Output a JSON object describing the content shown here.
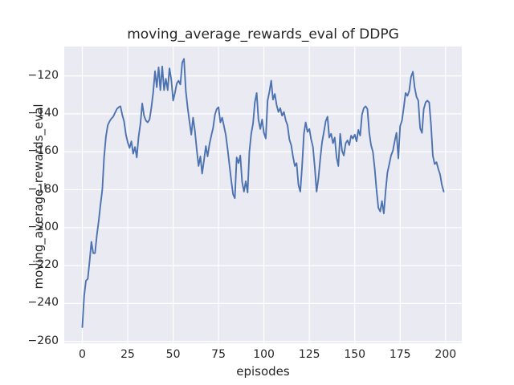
{
  "figure": {
    "background": "#FFFFFF"
  },
  "chart_data": {
    "type": "line",
    "title": "moving_average_rewards_eval of DDPG",
    "xlabel": "episodes",
    "ylabel": "moving_average_rewards_eval",
    "legend": null,
    "grid": true,
    "x_start": 0,
    "x_step": 1,
    "xlim": [
      -9.95,
      208.95
    ],
    "ylim": [
      -261,
      -104.5
    ],
    "xticks": [
      0,
      25,
      50,
      75,
      100,
      125,
      150,
      175,
      200
    ],
    "xtick_labels": [
      "0",
      "25",
      "50",
      "75",
      "100",
      "125",
      "150",
      "175",
      "200"
    ],
    "yticks": [
      -120,
      -140,
      -160,
      -180,
      -200,
      -220,
      -240,
      -260
    ],
    "ytick_labels": [
      "−120",
      "−140",
      "−160",
      "−180",
      "−200",
      "−220",
      "−240",
      "−260"
    ],
    "line_color": "#4C72B0",
    "axes_background": "#EAEAF2",
    "grid_color": "#FFFFFF",
    "text_color": "#262626",
    "values": [
      -252.5,
      -236,
      -228,
      -227,
      -218,
      -207.5,
      -213.5,
      -213.5,
      -204,
      -196.5,
      -188,
      -180,
      -163,
      -152,
      -146,
      -144,
      -142.5,
      -141.5,
      -139.5,
      -137.5,
      -136.5,
      -136,
      -140.5,
      -144,
      -151,
      -155,
      -158,
      -154.5,
      -161,
      -157.5,
      -163,
      -152,
      -145,
      -134.5,
      -141,
      -143.5,
      -144.5,
      -143,
      -137,
      -129,
      -117.5,
      -126,
      -115.5,
      -127.5,
      -115,
      -127.5,
      -121.5,
      -127.5,
      -116,
      -122,
      -133,
      -129,
      -124,
      -122.5,
      -124.5,
      -113,
      -111,
      -128,
      -137,
      -144,
      -151,
      -142,
      -149,
      -159,
      -167.5,
      -162.5,
      -171.5,
      -164.5,
      -157,
      -162.5,
      -156,
      -151.5,
      -147.5,
      -140.5,
      -137.5,
      -136.5,
      -144.5,
      -142,
      -146.5,
      -151,
      -158.5,
      -167,
      -175,
      -182.5,
      -184.5,
      -163,
      -166,
      -162,
      -176,
      -181,
      -175.5,
      -181.5,
      -160,
      -150.5,
      -145,
      -134,
      -129,
      -143,
      -148,
      -143,
      -150,
      -153,
      -133,
      -128.5,
      -122.5,
      -132.5,
      -129.5,
      -135.5,
      -139,
      -137,
      -141,
      -139,
      -143.5,
      -146,
      -153.5,
      -156.5,
      -162.5,
      -167.5,
      -166,
      -177.5,
      -181,
      -168,
      -150.5,
      -144.5,
      -149.5,
      -148,
      -153.5,
      -157.5,
      -168,
      -181,
      -174,
      -164,
      -155,
      -149.5,
      -144,
      -141.5,
      -152.5,
      -150.5,
      -155.5,
      -152.5,
      -163,
      -167.5,
      -150.5,
      -159.5,
      -162,
      -155.5,
      -154,
      -156.5,
      -151.5,
      -153,
      -151,
      -154.5,
      -148.5,
      -151.5,
      -140.5,
      -137,
      -136,
      -137.5,
      -150,
      -156.5,
      -160,
      -169,
      -180,
      -189.5,
      -191.5,
      -186,
      -192.5,
      -181,
      -171,
      -166.5,
      -162,
      -159.5,
      -154.5,
      -150,
      -163.5,
      -146.5,
      -143.5,
      -136.5,
      -129,
      -130.5,
      -128,
      -120.5,
      -117.8,
      -126,
      -131,
      -133,
      -147.5,
      -150,
      -137.5,
      -134,
      -133,
      -134,
      -146,
      -162,
      -166.5,
      -165.5,
      -169,
      -172,
      -177.5,
      -181
    ]
  }
}
